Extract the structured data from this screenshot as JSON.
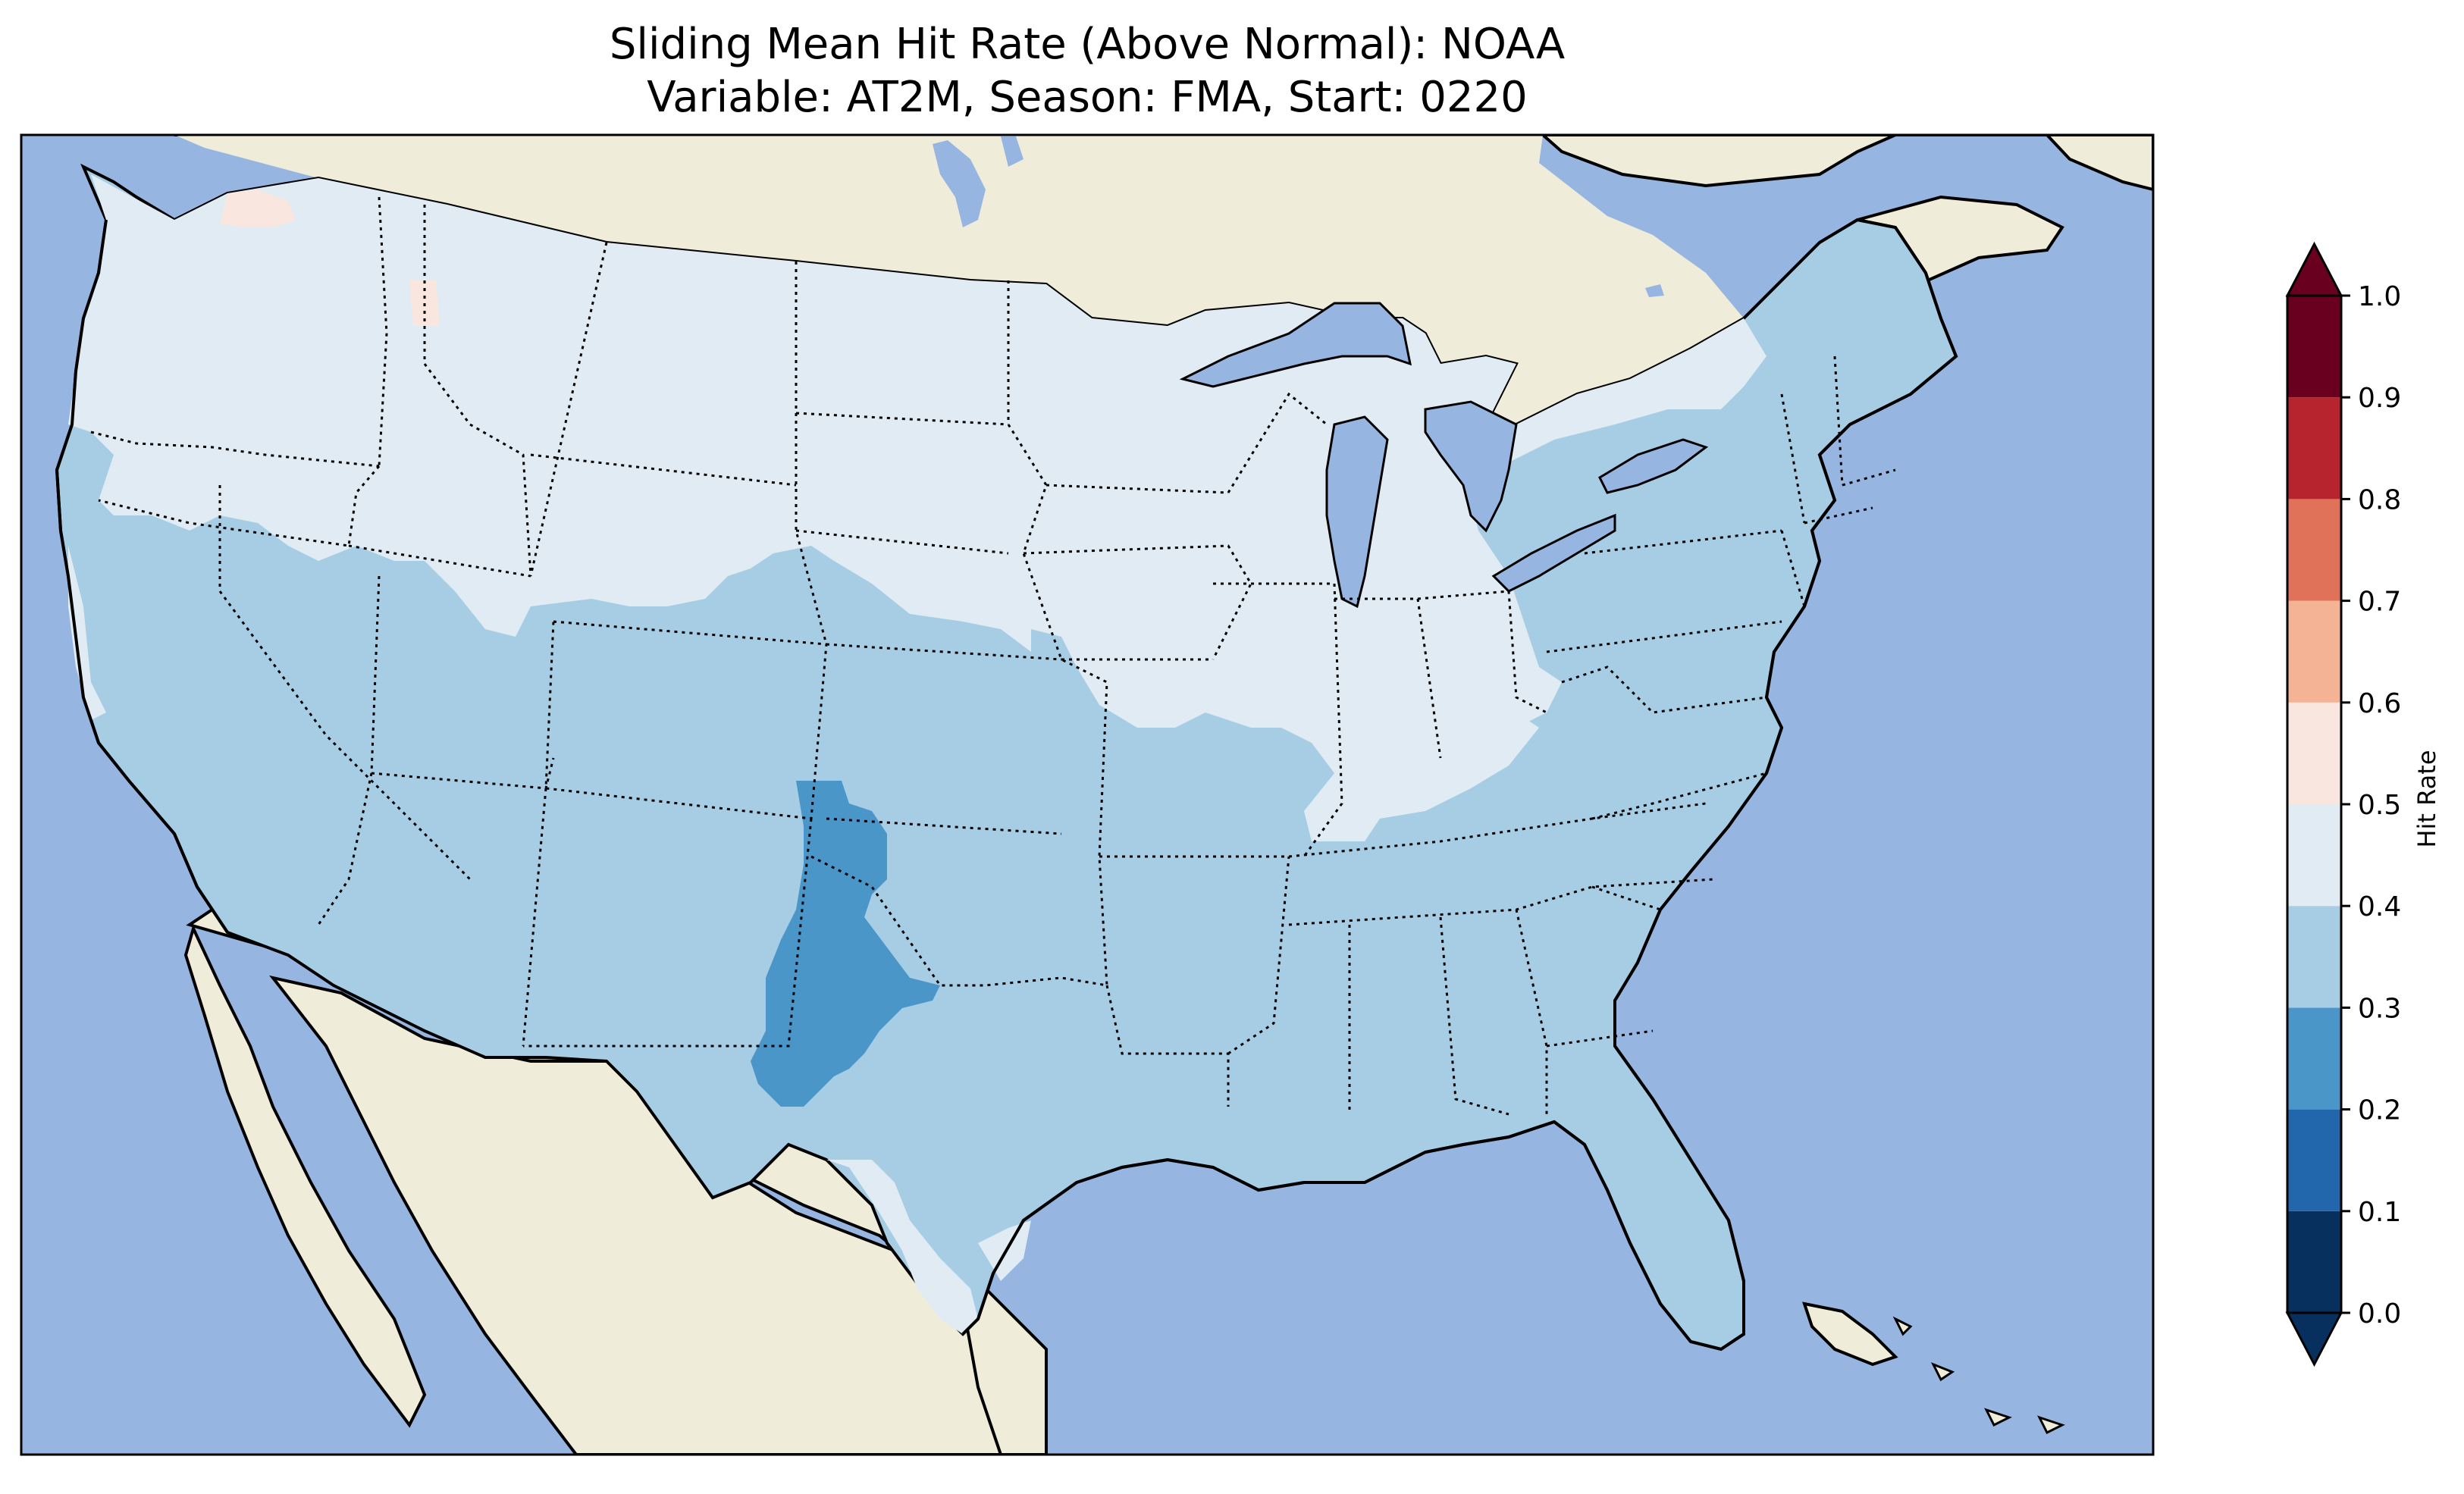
{
  "title": {
    "line1": "Sliding Mean Hit Rate (Above Normal): NOAA",
    "line2": "Variable: AT2M, Season: FMA, Start: 0220"
  },
  "colors": {
    "ocean": "#97b5e1",
    "land": "#efedda",
    "border": "#000000"
  },
  "colorbar": {
    "label": "Hit Rate",
    "ticks": [
      "0.0",
      "0.1",
      "0.2",
      "0.3",
      "0.4",
      "0.5",
      "0.6",
      "0.7",
      "0.8",
      "0.9",
      "1.0"
    ],
    "bins": [
      {
        "range": [
          0.0,
          0.1
        ],
        "color": "#08305e"
      },
      {
        "range": [
          0.1,
          0.2
        ],
        "color": "#2266ac"
      },
      {
        "range": [
          0.2,
          0.3
        ],
        "color": "#4a96c8"
      },
      {
        "range": [
          0.3,
          0.4
        ],
        "color": "#a6cde3"
      },
      {
        "range": [
          0.4,
          0.5
        ],
        "color": "#e0ebf3"
      },
      {
        "range": [
          0.5,
          0.6
        ],
        "color": "#f9e7df"
      },
      {
        "range": [
          0.6,
          0.7
        ],
        "color": "#f5b395"
      },
      {
        "range": [
          0.7,
          0.8
        ],
        "color": "#e0725a"
      },
      {
        "range": [
          0.8,
          0.9
        ],
        "color": "#b8242e"
      },
      {
        "range": [
          0.9,
          1.0
        ],
        "color": "#690020"
      }
    ],
    "under_color": "#08305e",
    "over_color": "#690020"
  }
}
